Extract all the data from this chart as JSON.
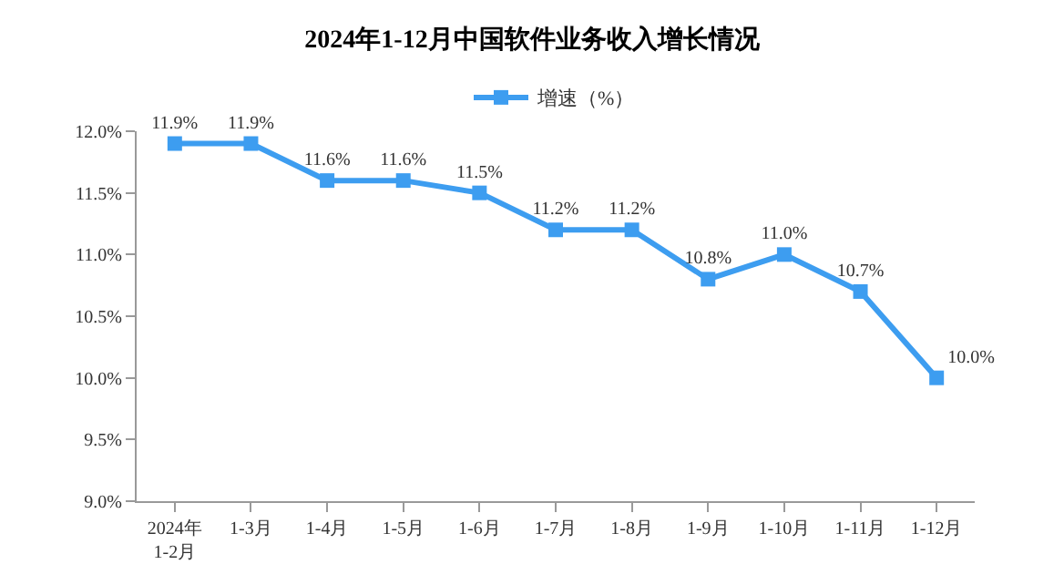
{
  "chart_data": {
    "type": "line",
    "title": "2024年1-12月中国软件业务收入增长情况",
    "categories": [
      "2024年\n1-2月",
      "1-3月",
      "1-4月",
      "1-5月",
      "1-6月",
      "1-7月",
      "1-8月",
      "1-9月",
      "1-10月",
      "1-11月",
      "1-12月"
    ],
    "series": [
      {
        "name": "增速（%）",
        "color": "#3d9df0",
        "values": [
          11.9,
          11.9,
          11.6,
          11.6,
          11.5,
          11.2,
          11.2,
          10.8,
          11.0,
          10.7,
          10.0
        ],
        "value_labels": [
          "11.9%",
          "11.9%",
          "11.6%",
          "11.6%",
          "11.5%",
          "11.2%",
          "11.2%",
          "10.8%",
          "11.0%",
          "10.7%",
          "10.0%"
        ]
      }
    ],
    "ylim": [
      9,
      12
    ],
    "yticks": [
      {
        "value": 9,
        "label": "9.0%"
      },
      {
        "value": 9.5,
        "label": "9.5%"
      },
      {
        "value": 10,
        "label": "10.0%"
      },
      {
        "value": 10.5,
        "label": "10.5%"
      },
      {
        "value": 11,
        "label": "11.0%"
      },
      {
        "value": 11.5,
        "label": "11.5%"
      },
      {
        "value": 12,
        "label": "12.0%"
      }
    ],
    "grid": false,
    "legend": "top",
    "marker": "square",
    "line_style": "solid"
  }
}
